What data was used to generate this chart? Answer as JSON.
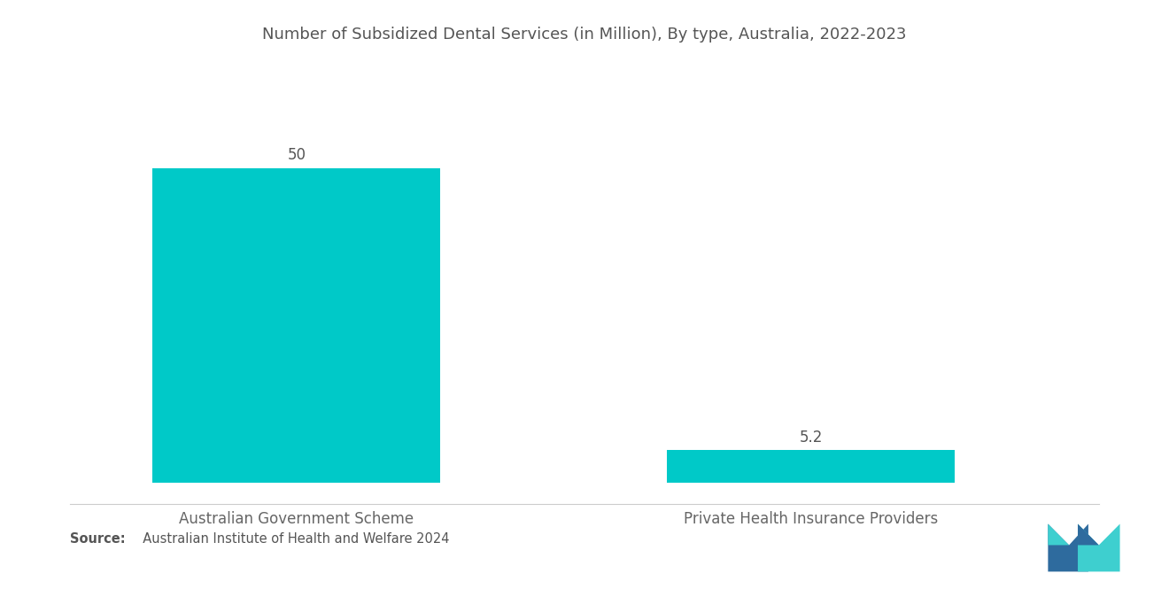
{
  "title": "Number of Subsidized Dental Services (in Million), By type, Australia, 2022-2023",
  "categories": [
    "Australian Government Scheme",
    "Private Health Insurance Providers"
  ],
  "values": [
    50,
    5.2
  ],
  "bar_color": "#00C9C8",
  "background_color": "#ffffff",
  "title_fontsize": 13,
  "label_fontsize": 12,
  "value_fontsize": 12,
  "source_bold": "Source:",
  "source_rest": "  Australian Institute of Health and Welfare 2024",
  "ylim": [
    0,
    58
  ],
  "bar_width": 0.28,
  "x_positions": [
    0.22,
    0.72
  ],
  "xlim": [
    0.0,
    1.0
  ],
  "logo_dark_blue": "#2E6B9E",
  "logo_teal": "#3ECFCF"
}
